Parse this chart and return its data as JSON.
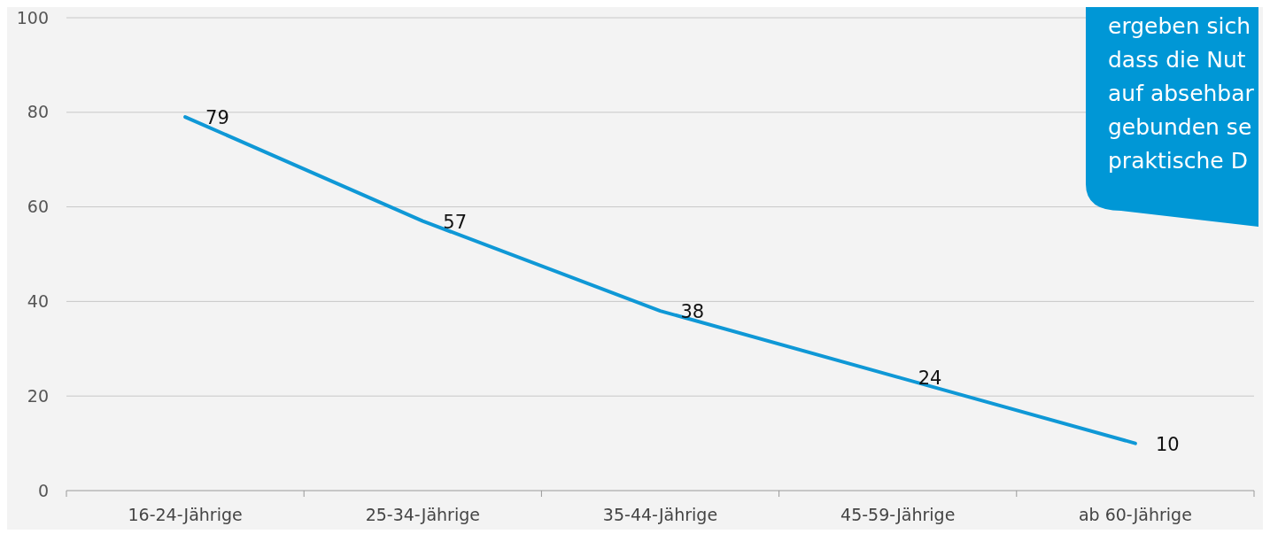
{
  "chart_data": {
    "type": "line",
    "categories": [
      "16-24-Jährige",
      "25-34-Jährige",
      "35-44-Jährige",
      "45-59-Jährige",
      "ab 60-Jährige"
    ],
    "series": [
      {
        "color": "#0f98d6",
        "values": [
          79,
          57,
          38,
          24,
          10
        ]
      }
    ],
    "ylim": [
      0,
      100
    ],
    "yticks": [
      0,
      20,
      40,
      60,
      80,
      100
    ],
    "grid": "y",
    "data_labels": true,
    "marker": "none",
    "line_style": "solid",
    "annotations": [
      "ergeben sich\ndass die Nut\nauf absehbar\ngebunden se\npraktische D"
    ]
  }
}
